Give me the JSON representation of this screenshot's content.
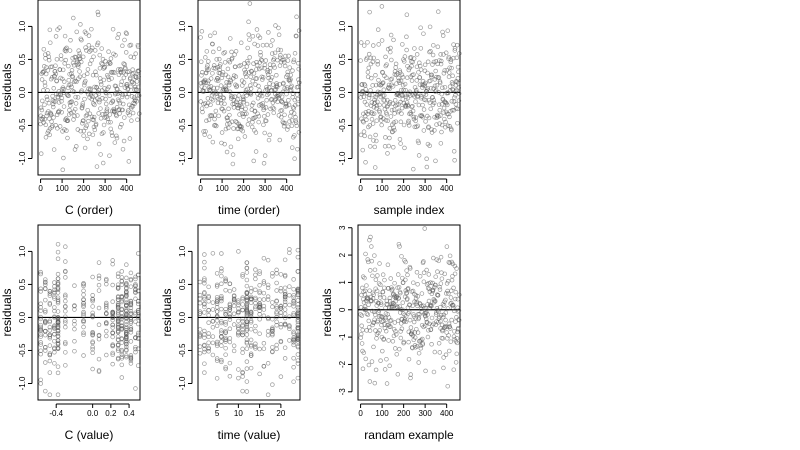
{
  "chart_data": [
    {
      "type": "scatter",
      "xlabel": "C (order)",
      "ylabel": "residuals",
      "xlim": [
        -12,
        462
      ],
      "ylim": [
        -1.25,
        1.4
      ],
      "xticks": [
        0,
        100,
        200,
        300,
        400
      ],
      "xtick_labels": [
        "0",
        "100",
        "200",
        "300",
        "400"
      ],
      "yticks": [
        -1,
        -0.5,
        0,
        0.5,
        1
      ],
      "ytick_labels": [
        "-1.0",
        "-0.5",
        "0.0",
        "0.5",
        "1.0"
      ],
      "hline": 0,
      "n_points": 460,
      "x_pattern": "index",
      "sd": 0.42,
      "series": [
        {
          "name": "",
          "color": "#555555",
          "marker": "open-circle",
          "seed": 11
        }
      ]
    },
    {
      "type": "scatter",
      "xlabel": "time (order)",
      "ylabel": "residuals",
      "xlim": [
        -12,
        462
      ],
      "ylim": [
        -1.25,
        1.4
      ],
      "xticks": [
        0,
        100,
        200,
        300,
        400
      ],
      "xtick_labels": [
        "0",
        "100",
        "200",
        "300",
        "400"
      ],
      "yticks": [
        -1,
        -0.5,
        0,
        0.5,
        1
      ],
      "ytick_labels": [
        "-1.0",
        "-0.5",
        "0.0",
        "0.5",
        "1.0"
      ],
      "hline": 0,
      "n_points": 460,
      "x_pattern": "index",
      "sd": 0.42,
      "series": [
        {
          "name": "",
          "color": "#555555",
          "marker": "open-circle",
          "seed": 23
        }
      ]
    },
    {
      "type": "scatter",
      "xlabel": "sample index",
      "ylabel": "residuals",
      "xlim": [
        -12,
        462
      ],
      "ylim": [
        -1.25,
        1.4
      ],
      "xticks": [
        0,
        100,
        200,
        300,
        400
      ],
      "xtick_labels": [
        "0",
        "100",
        "200",
        "300",
        "400"
      ],
      "yticks": [
        -1,
        -0.5,
        0,
        0.5,
        1
      ],
      "ytick_labels": [
        "-1.0",
        "-0.5",
        "0.0",
        "0.5",
        "1.0"
      ],
      "hline": 0,
      "n_points": 460,
      "x_pattern": "index",
      "sd": 0.42,
      "series": [
        {
          "name": "",
          "color": "#555555",
          "marker": "open-circle",
          "seed": 37
        }
      ]
    },
    {
      "type": "scatter",
      "xlabel": "C (value)",
      "ylabel": "residuals",
      "xlim": [
        -0.6,
        0.52
      ],
      "ylim": [
        -1.25,
        1.4
      ],
      "xticks": [
        -0.4,
        0,
        0.2,
        0.4
      ],
      "xtick_labels": [
        "-0.4",
        "0.0",
        "0.2",
        "0.4"
      ],
      "yticks": [
        -1,
        -0.5,
        0,
        0.5,
        1
      ],
      "ytick_labels": [
        "-1.0",
        "-0.5",
        "0.0",
        "0.5",
        "1.0"
      ],
      "hline": 0,
      "n_points": 460,
      "x_pattern": "grouped",
      "x_groups": [
        -0.57,
        -0.52,
        -0.47,
        -0.42,
        -0.38,
        -0.3,
        -0.2,
        -0.1,
        0.0,
        0.07,
        0.15,
        0.22,
        0.28,
        0.32,
        0.37,
        0.42,
        0.47,
        0.5
      ],
      "x_group_weights": [
        2,
        2,
        2,
        2,
        4,
        1.5,
        1,
        1.5,
        2,
        1,
        1.5,
        2,
        4,
        3,
        5,
        2,
        2,
        2
      ],
      "sd": 0.42,
      "series": [
        {
          "name": "",
          "color": "#555555",
          "marker": "open-circle",
          "seed": 41
        }
      ]
    },
    {
      "type": "scatter",
      "xlabel": "time (value)",
      "ylabel": "residuals",
      "xlim": [
        0.5,
        24.5
      ],
      "ylim": [
        -1.25,
        1.4
      ],
      "xticks": [
        5,
        10,
        15,
        20
      ],
      "xtick_labels": [
        "5",
        "10",
        "15",
        "20"
      ],
      "yticks": [
        -1,
        -0.5,
        0,
        0.5,
        1
      ],
      "ytick_labels": [
        "-1.0",
        "-0.5",
        "0.0",
        "0.5",
        "1.0"
      ],
      "hline": 0,
      "n_points": 460,
      "x_pattern": "grouped",
      "x_groups": [
        1,
        2,
        3,
        4,
        5,
        6,
        7,
        8,
        9,
        10,
        11,
        12,
        13,
        14,
        15,
        16,
        17,
        18,
        19,
        20,
        21,
        22,
        23,
        24
      ],
      "x_group_weights": [
        1,
        2,
        1.5,
        1.5,
        2,
        1.5,
        2,
        2,
        1.5,
        1.5,
        2,
        5,
        2,
        1.5,
        2,
        2,
        1.5,
        2,
        1.5,
        2,
        2,
        1.5,
        2,
        5
      ],
      "sd": 0.42,
      "series": [
        {
          "name": "",
          "color": "#555555",
          "marker": "open-circle",
          "seed": 53
        }
      ]
    },
    {
      "type": "scatter",
      "xlabel": "randam example",
      "ylabel": "residuals",
      "xlim": [
        -12,
        462
      ],
      "ylim": [
        -3.3,
        3.1
      ],
      "xticks": [
        0,
        100,
        200,
        300,
        400
      ],
      "xtick_labels": [
        "0",
        "100",
        "200",
        "300",
        "400"
      ],
      "yticks": [
        -3,
        -2,
        -1,
        0,
        1,
        2,
        3
      ],
      "ytick_labels": [
        "-3",
        "-2",
        "-1",
        "0",
        "1",
        "2",
        "3"
      ],
      "hline": 0,
      "n_points": 460,
      "x_pattern": "index",
      "sd": 1.0,
      "series": [
        {
          "name": "",
          "color": "#555555",
          "marker": "open-circle",
          "seed": 67
        }
      ]
    }
  ]
}
